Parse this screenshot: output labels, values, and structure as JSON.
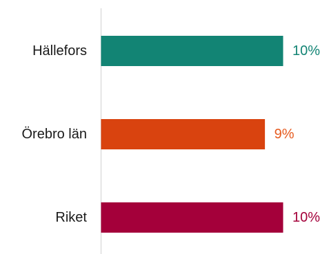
{
  "chart_data": {
    "type": "bar",
    "orientation": "horizontal",
    "categories": [
      "Hällefors",
      "Örebro län",
      "Riket"
    ],
    "values": [
      0.1,
      0.09,
      0.1
    ],
    "value_labels": [
      "10%",
      "9%",
      "10%"
    ],
    "colors": [
      "#128474",
      "#D9430F",
      "#A4003A"
    ],
    "label_colors": [
      "#128474",
      "#E65A1E",
      "#A4003A"
    ],
    "axis_color": "#d0d0d0",
    "grid": false,
    "legend": "none",
    "title": "",
    "xlabel": "",
    "ylabel": ""
  }
}
